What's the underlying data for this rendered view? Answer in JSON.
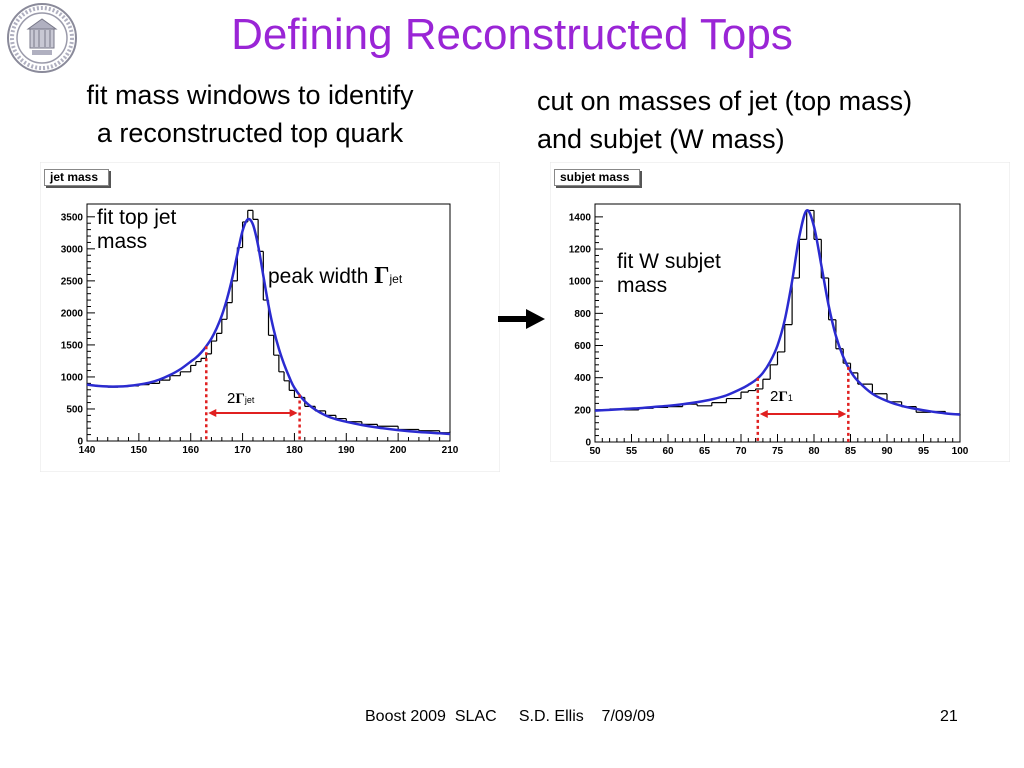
{
  "slide": {
    "title": "Defining Reconstructed Tops",
    "left_subtitle_line1": "fit mass windows to identify",
    "left_subtitle_line2": "a reconstructed top quark",
    "right_subtitle_line1": "cut on masses of jet (top mass)",
    "right_subtitle_line2": "and subjet (W mass)",
    "footer": "Boost 2009  SLAC     S.D. Ellis    7/09/09",
    "slide_number": "21"
  },
  "left_panel": {
    "tag": "jet mass",
    "fit_note_line1": "fit top jet",
    "fit_note_line2": "mass",
    "peak_note_text": "peak width ",
    "gamma_symbol": "Γ",
    "gamma_sub": "jet",
    "width_prefix": "2",
    "width_gamma": "Γ",
    "width_sub": "jet"
  },
  "right_panel": {
    "tag": "subjet mass",
    "fit_note_line1": "fit W subjet",
    "fit_note_line2": "mass",
    "width_prefix": "2",
    "width_gamma": "Γ",
    "width_sub": "1"
  },
  "colors": {
    "title": "#9a25d6",
    "fit_curve": "#2b2bd0",
    "window_marker": "#e02020",
    "histogram": "#000000"
  },
  "chart_data": [
    {
      "type": "line",
      "name": "jet mass",
      "x": [
        140,
        142,
        144,
        146,
        148,
        150,
        152,
        154,
        156,
        158,
        160,
        161,
        162,
        163,
        164,
        165,
        166,
        167,
        168,
        169,
        170,
        171,
        172,
        173,
        174,
        175,
        176,
        177,
        178,
        179,
        180,
        182,
        184,
        186,
        188,
        190,
        193,
        196,
        200,
        204,
        208,
        210
      ],
      "histogram_values": [
        870,
        860,
        840,
        850,
        860,
        880,
        900,
        950,
        1020,
        1080,
        1180,
        1240,
        1290,
        1360,
        1560,
        1680,
        1900,
        2160,
        2500,
        3020,
        3420,
        3600,
        3460,
        2960,
        2200,
        1650,
        1340,
        1080,
        940,
        790,
        680,
        540,
        470,
        400,
        350,
        300,
        260,
        230,
        180,
        160,
        130,
        150
      ],
      "fit_values": [
        880,
        860,
        850,
        850,
        860,
        880,
        910,
        960,
        1030,
        1120,
        1240,
        1300,
        1380,
        1480,
        1600,
        1760,
        1960,
        2220,
        2540,
        2920,
        3280,
        3460,
        3380,
        3050,
        2580,
        2120,
        1740,
        1440,
        1200,
        1000,
        830,
        620,
        490,
        400,
        340,
        300,
        250,
        210,
        170,
        140,
        120,
        110
      ],
      "fit_window": [
        163,
        181
      ],
      "width_label": "2Γjet",
      "xlim": [
        140,
        210
      ],
      "ylim": [
        0,
        3700
      ],
      "xticks": [
        140,
        150,
        160,
        170,
        180,
        190,
        200,
        210
      ],
      "yticks": [
        0,
        500,
        1000,
        1500,
        2000,
        2500,
        3000,
        3500
      ],
      "xlabel": "",
      "ylabel": ""
    },
    {
      "type": "line",
      "name": "subjet mass",
      "x": [
        50,
        52,
        54,
        56,
        58,
        60,
        62,
        64,
        66,
        68,
        70,
        71,
        72,
        73,
        74,
        75,
        76,
        77,
        78,
        79,
        80,
        81,
        82,
        83,
        84,
        85,
        86,
        88,
        90,
        92,
        94,
        96,
        98,
        100
      ],
      "histogram_values": [
        200,
        205,
        200,
        210,
        215,
        220,
        235,
        225,
        245,
        270,
        310,
        320,
        330,
        390,
        480,
        560,
        730,
        1020,
        1260,
        1440,
        1260,
        1020,
        760,
        580,
        490,
        430,
        360,
        300,
        250,
        220,
        185,
        190,
        175,
        165
      ],
      "fit_values": [
        195,
        200,
        205,
        210,
        218,
        225,
        235,
        248,
        265,
        290,
        330,
        355,
        385,
        430,
        500,
        600,
        760,
        1000,
        1280,
        1440,
        1340,
        1100,
        850,
        660,
        530,
        440,
        380,
        300,
        255,
        225,
        205,
        190,
        178,
        170
      ],
      "fit_window": [
        72.3,
        84.7
      ],
      "width_label": "2Γ1",
      "xlim": [
        50,
        100
      ],
      "ylim": [
        0,
        1480
      ],
      "xticks": [
        50,
        55,
        60,
        65,
        70,
        75,
        80,
        85,
        90,
        95,
        100
      ],
      "yticks": [
        0,
        200,
        400,
        600,
        800,
        1000,
        1200,
        1400
      ],
      "xlabel": "",
      "ylabel": ""
    }
  ]
}
